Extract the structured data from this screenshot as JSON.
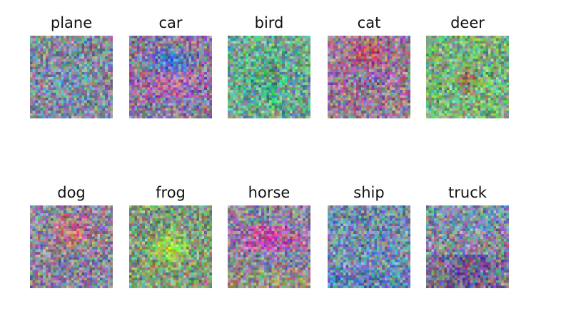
{
  "figure": {
    "rows": [
      {
        "panels": [
          {
            "label": "plane",
            "colors": {
              "base": "#7f8d9a",
              "center": "#5aa0b8",
              "accent": "#9a7fb0"
            },
            "pattern": "diffuse"
          },
          {
            "label": "car",
            "colors": {
              "base": "#8a7d9c",
              "center": "#3d7fd6",
              "accent": "#d04ab8"
            },
            "pattern": "car"
          },
          {
            "label": "bird",
            "colors": {
              "base": "#6fa890",
              "center": "#4fb08a",
              "accent": "#8a7a50"
            },
            "pattern": "bird"
          },
          {
            "label": "cat",
            "colors": {
              "base": "#9a7c96",
              "center": "#c05a6a",
              "accent": "#7a6fb0"
            },
            "pattern": "cat"
          },
          {
            "label": "deer",
            "colors": {
              "base": "#7fb07f",
              "center": "#a0704a",
              "accent": "#6fb06f"
            },
            "pattern": "deer"
          }
        ]
      },
      {
        "panels": [
          {
            "label": "dog",
            "colors": {
              "base": "#8f8a9a",
              "center": "#c87070",
              "accent": "#8070a8"
            },
            "pattern": "dog"
          },
          {
            "label": "frog",
            "colors": {
              "base": "#7f9a7a",
              "center": "#b6e040",
              "accent": "#6ab070"
            },
            "pattern": "frog"
          },
          {
            "label": "horse",
            "colors": {
              "base": "#8a8aa0",
              "center": "#c050a8",
              "accent": "#b0a050"
            },
            "pattern": "horse"
          },
          {
            "label": "ship",
            "colors": {
              "base": "#7890a8",
              "center": "#6a8ab0",
              "accent": "#4a7ab8"
            },
            "pattern": "ship"
          },
          {
            "label": "truck",
            "colors": {
              "base": "#8a8ca0",
              "center": "#6a5a8a",
              "accent": "#5aa0c8"
            },
            "pattern": "truck"
          }
        ]
      }
    ]
  }
}
